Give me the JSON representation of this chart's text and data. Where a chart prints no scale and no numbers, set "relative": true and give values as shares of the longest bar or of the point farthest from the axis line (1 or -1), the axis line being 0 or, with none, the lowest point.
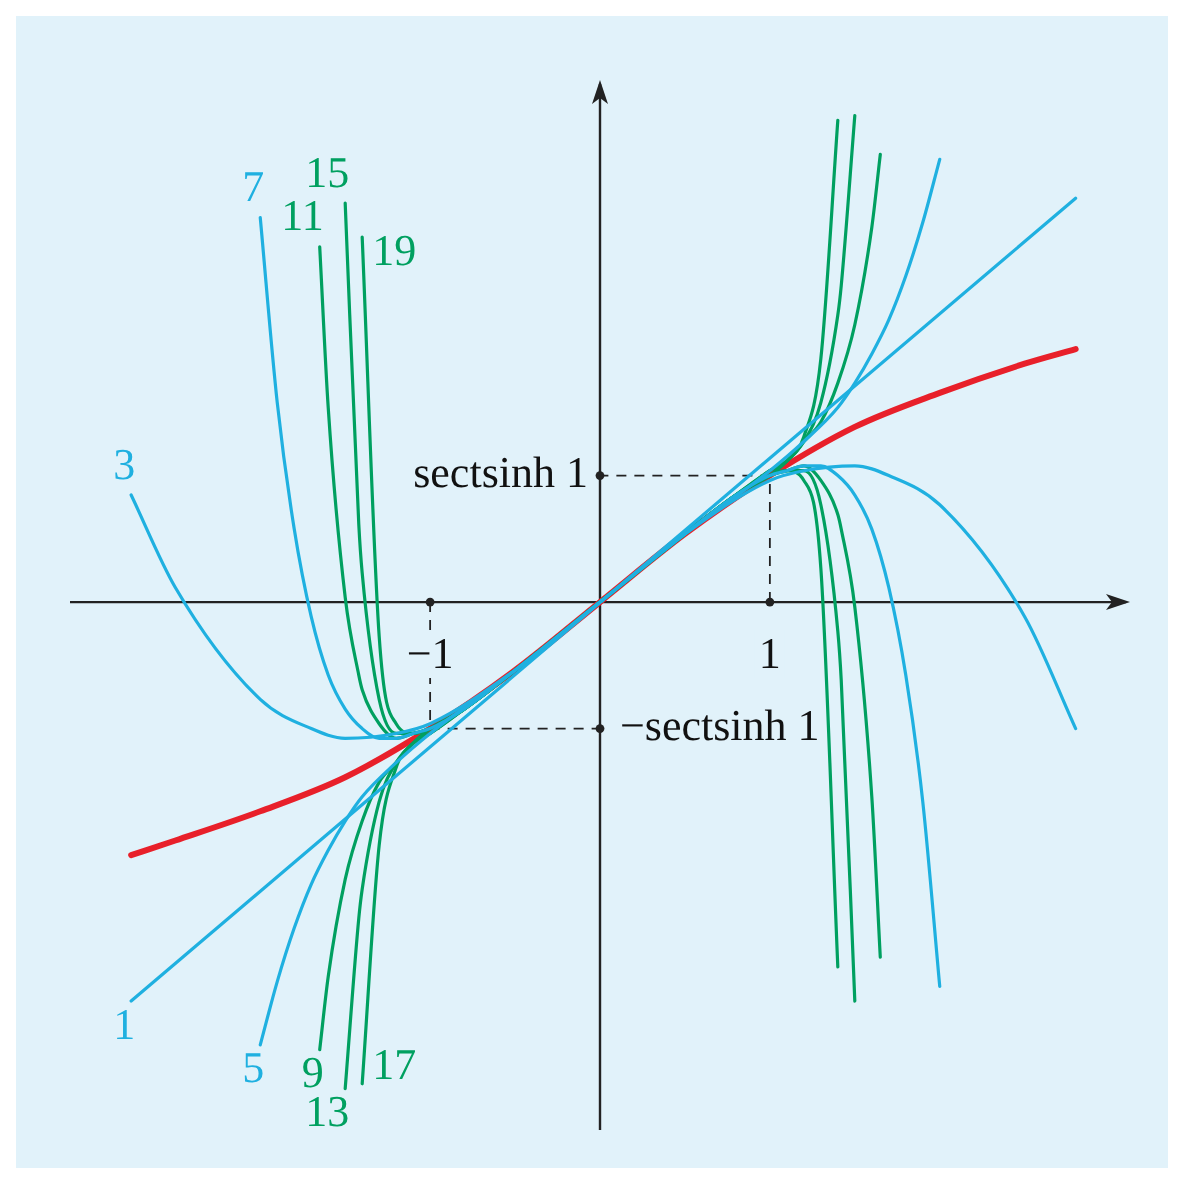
{
  "chart_data": {
    "type": "line",
    "relative": true,
    "xlim": [
      -3.12,
      3.12
    ],
    "xticks": [
      {
        "value": -1,
        "label": "−1"
      },
      {
        "value": 1,
        "label": "1"
      }
    ],
    "marker": "none",
    "annotations": [
      {
        "text": "−sectsinh 1",
        "x": 0,
        "y": -0.26
      },
      {
        "text": "sectsinh 1",
        "x": 0,
        "y": 0.26
      }
    ],
    "series": [
      {
        "name": "1",
        "color": "#1fb0e0",
        "x": [
          -2.76,
          2.8
        ],
        "values": [
          -0.82,
          0.83
        ]
      },
      {
        "name": "3",
        "color": "#1fb0e0",
        "x": [
          -2.76,
          -2.5,
          -2,
          -1.7,
          -1.5,
          -1.2,
          -1,
          -0.5,
          0,
          0.5,
          1,
          1.2,
          1.5,
          1.7,
          2,
          2.5,
          2.8
        ],
        "values": [
          0.22,
          0.03,
          -0.2,
          -0.26,
          -0.28,
          -0.27,
          -0.25,
          -0.14,
          0,
          0.14,
          0.25,
          0.27,
          0.28,
          0.26,
          0.2,
          -0.03,
          -0.26
        ]
      },
      {
        "name": "5",
        "color": "#1fb0e0",
        "x": [
          -2,
          -1.9,
          -1.8,
          -1.7,
          -1.6,
          -1.5,
          -1.4,
          -1.2,
          -1,
          -0.5,
          0,
          0.5,
          1,
          1.2,
          1.4,
          1.5,
          1.6,
          1.7,
          1.8,
          1.9,
          2
        ],
        "values": [
          -0.91,
          -0.78,
          -0.67,
          -0.58,
          -0.51,
          -0.45,
          -0.4,
          -0.33,
          -0.27,
          -0.14,
          0,
          0.14,
          0.27,
          0.33,
          0.4,
          0.45,
          0.51,
          0.58,
          0.67,
          0.78,
          0.91
        ]
      },
      {
        "name": "7",
        "color": "#1fb0e0",
        "x": [
          -2,
          -1.9,
          -1.8,
          -1.7,
          -1.6,
          -1.5,
          -1.4,
          -1.3,
          -1.2,
          -1.1,
          -1,
          -0.8,
          -0.5,
          0,
          0.5,
          0.8,
          1,
          1.1,
          1.2,
          1.3,
          1.4,
          1.5,
          1.6,
          1.7,
          1.8,
          1.9,
          2
        ],
        "values": [
          0.79,
          0.41,
          0.15,
          -0.03,
          -0.15,
          -0.22,
          -0.26,
          -0.28,
          -0.28,
          -0.27,
          -0.26,
          -0.22,
          -0.14,
          0,
          0.14,
          0.22,
          0.26,
          0.27,
          0.28,
          0.28,
          0.26,
          0.22,
          0.15,
          0.03,
          -0.15,
          -0.41,
          -0.79
        ]
      },
      {
        "name": "9",
        "color": "#00a060",
        "x": [
          -1.65,
          -1.6,
          -1.5,
          -1.4,
          -1.3,
          -1.2,
          -1.1,
          -1,
          -0.8,
          -0.5,
          0,
          0.5,
          0.8,
          1,
          1.1,
          1.2,
          1.3,
          1.4,
          1.5,
          1.6,
          1.65
        ],
        "values": [
          -0.92,
          -0.77,
          -0.57,
          -0.45,
          -0.37,
          -0.33,
          -0.29,
          -0.27,
          -0.22,
          -0.14,
          0,
          0.14,
          0.22,
          0.27,
          0.29,
          0.33,
          0.37,
          0.45,
          0.57,
          0.77,
          0.92
        ]
      },
      {
        "name": "11",
        "color": "#00a060",
        "x": [
          -1.65,
          -1.6,
          -1.5,
          -1.42,
          -1.4,
          -1.3,
          -1.2,
          -1.1,
          -1,
          -0.8,
          -0.5,
          0,
          0.5,
          0.8,
          1,
          1.1,
          1.2,
          1.3,
          1.4,
          1.42,
          1.5,
          1.6,
          1.65
        ],
        "values": [
          0.73,
          0.4,
          0.01,
          -0.15,
          -0.18,
          -0.25,
          -0.28,
          -0.27,
          -0.26,
          -0.22,
          -0.14,
          0,
          0.14,
          0.22,
          0.26,
          0.27,
          0.28,
          0.25,
          0.18,
          0.15,
          -0.01,
          -0.4,
          -0.73
        ]
      },
      {
        "name": "13",
        "color": "#00a060",
        "x": [
          -1.5,
          -1.42,
          -1.4,
          -1.3,
          -1.2,
          -1.1,
          -1,
          -0.8,
          -0.5,
          0,
          0.5,
          0.8,
          1,
          1.1,
          1.2,
          1.3,
          1.4,
          1.42,
          1.5
        ],
        "values": [
          -1,
          -0.65,
          -0.59,
          -0.41,
          -0.33,
          -0.29,
          -0.27,
          -0.22,
          -0.14,
          0,
          0.14,
          0.22,
          0.27,
          0.29,
          0.33,
          0.41,
          0.59,
          0.65,
          1
        ]
      },
      {
        "name": "15",
        "color": "#00a060",
        "x": [
          -1.5,
          -1.42,
          -1.4,
          -1.3,
          -1.2,
          -1.1,
          -1,
          -0.8,
          -0.5,
          0,
          0.5,
          0.8,
          1,
          1.1,
          1.2,
          1.3,
          1.4,
          1.42,
          1.5
        ],
        "values": [
          0.82,
          0.16,
          0.06,
          -0.2,
          -0.27,
          -0.27,
          -0.26,
          -0.22,
          -0.14,
          0,
          0.14,
          0.22,
          0.26,
          0.27,
          0.27,
          0.2,
          -0.06,
          -0.16,
          -0.82
        ]
      },
      {
        "name": "17",
        "color": "#00a060",
        "x": [
          -1.4,
          -1.3,
          -1.2,
          -1.1,
          -1,
          -0.8,
          -0.5,
          0,
          0.5,
          0.8,
          1,
          1.1,
          1.2,
          1.3,
          1.4
        ],
        "values": [
          -0.99,
          -0.5,
          -0.34,
          -0.29,
          -0.26,
          -0.22,
          -0.14,
          0,
          0.14,
          0.22,
          0.26,
          0.29,
          0.34,
          0.5,
          0.99
        ]
      },
      {
        "name": "19",
        "color": "#00a060",
        "x": [
          -1.4,
          -1.3,
          -1.2,
          -1.1,
          -1,
          -0.8,
          -0.5,
          0,
          0.5,
          0.8,
          1,
          1.1,
          1.2,
          1.3,
          1.4
        ],
        "values": [
          0.75,
          -0.07,
          -0.25,
          -0.27,
          -0.26,
          -0.22,
          -0.14,
          0,
          0.14,
          0.22,
          0.26,
          0.27,
          0.25,
          0.07,
          -0.75
        ]
      },
      {
        "color": "#e8202a",
        "x": [
          -2.76,
          -2.5,
          -2,
          -1.5,
          -1,
          -0.5,
          0,
          0.5,
          1,
          1.5,
          2,
          2.5,
          2.8
        ],
        "values": [
          -0.52,
          -0.49,
          -0.43,
          -0.36,
          -0.26,
          -0.14,
          0,
          0.14,
          0.26,
          0.36,
          0.43,
          0.49,
          0.52
        ]
      }
    ]
  }
}
